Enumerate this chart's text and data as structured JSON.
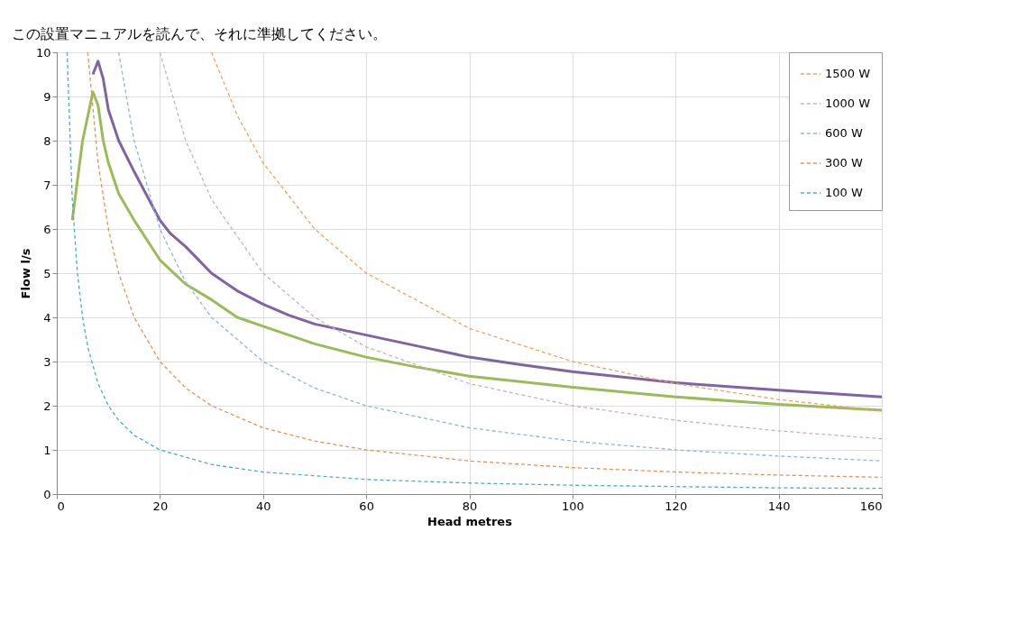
{
  "chart_data": {
    "type": "line",
    "xlabel": "Head metres",
    "ylabel": "Flow l/s",
    "annotations": [
      "この設置マニュアルを読んで、それに準拠してください。"
    ],
    "xlim": [
      0,
      160
    ],
    "xticks": [
      0,
      20,
      40,
      60,
      80,
      100,
      120,
      140,
      160
    ],
    "ylim": [
      0,
      10
    ],
    "yticks": [
      0,
      1,
      2,
      3,
      4,
      5,
      6,
      7,
      8,
      9,
      10
    ],
    "grid": true,
    "legend": "top right",
    "marker": "none",
    "series": [
      {
        "color": "#8064a2",
        "line_style": "solid",
        "x": [
          7,
          8,
          9,
          10,
          12,
          15,
          20,
          22,
          25,
          30,
          35,
          40,
          45,
          50,
          60,
          70,
          80,
          90,
          100,
          120,
          140,
          160
        ],
        "values": [
          9.5,
          9.8,
          9.4,
          8.7,
          8,
          7.3,
          6.2,
          5.9,
          5.6,
          5.0,
          4.6,
          4.3,
          4.05,
          3.85,
          3.6,
          3.35,
          3.1,
          2.93,
          2.77,
          2.52,
          2.35,
          2.2
        ]
      },
      {
        "color": "#9bbb59",
        "line_style": "solid",
        "x": [
          3,
          5,
          7,
          8,
          9,
          10,
          12,
          15,
          20,
          25,
          30,
          35,
          40,
          50,
          60,
          70,
          80,
          100,
          120,
          140,
          160
        ],
        "values": [
          6.2,
          8,
          9.1,
          8.8,
          8.0,
          7.5,
          6.8,
          6.2,
          5.3,
          4.75,
          4.4,
          4.0,
          3.8,
          3.4,
          3.1,
          2.87,
          2.67,
          2.42,
          2.2,
          2.03,
          1.9
        ]
      },
      {
        "name": "1500 W",
        "color": "#f0a25c",
        "line_style": "dashed",
        "x": [
          30,
          35,
          40,
          50,
          60,
          80,
          100,
          120,
          140,
          160
        ],
        "values": [
          10,
          8.57,
          7.5,
          6,
          5,
          3.75,
          3,
          2.5,
          2.14,
          1.88
        ]
      },
      {
        "name": "1000 W",
        "color": "#c8b4b4",
        "line_style": "dashed",
        "x": [
          20,
          25,
          30,
          40,
          50,
          60,
          80,
          100,
          120,
          140,
          160
        ],
        "values": [
          10,
          8,
          6.67,
          5,
          4,
          3.33,
          2.5,
          2,
          1.67,
          1.43,
          1.25
        ]
      },
      {
        "name": "600 W",
        "color": "#95b3d7",
        "line_style": "dashed",
        "x": [
          12,
          15,
          20,
          25,
          30,
          40,
          50,
          60,
          80,
          100,
          120,
          140,
          160
        ],
        "values": [
          10,
          8,
          6,
          4.8,
          4,
          3,
          2.4,
          2,
          1.5,
          1.2,
          1,
          0.86,
          0.75
        ]
      },
      {
        "name": "300 W",
        "color": "#e39357",
        "line_style": "dashed",
        "x": [
          6,
          8,
          10,
          12,
          15,
          20,
          25,
          30,
          40,
          50,
          60,
          80,
          100,
          120,
          140,
          160
        ],
        "values": [
          10,
          7.5,
          6,
          5,
          4,
          3,
          2.4,
          2,
          1.5,
          1.2,
          1,
          0.75,
          0.6,
          0.5,
          0.43,
          0.38
        ]
      },
      {
        "name": "100 W",
        "color": "#4bacc6",
        "line_style": "dashed",
        "x": [
          2,
          3,
          4,
          5,
          6,
          8,
          10,
          12,
          15,
          20,
          30,
          40,
          60,
          80,
          100,
          120,
          140,
          160
        ],
        "values": [
          10,
          6.67,
          5,
          4,
          3.33,
          2.5,
          2,
          1.67,
          1.33,
          1,
          0.67,
          0.5,
          0.33,
          0.25,
          0.2,
          0.17,
          0.14,
          0.13
        ]
      }
    ]
  }
}
